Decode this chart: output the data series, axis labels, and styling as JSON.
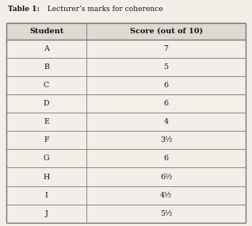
{
  "title_bold": "Table 1:",
  "title_normal": "  Lecturer’s marks for coherence",
  "col_headers": [
    "Student",
    "Score (out of 10)"
  ],
  "rows": [
    [
      "A",
      "7"
    ],
    [
      "B",
      "5"
    ],
    [
      "C",
      "6"
    ],
    [
      "D",
      "6"
    ],
    [
      "E",
      "4"
    ],
    [
      "F",
      "3½"
    ],
    [
      "G",
      "6"
    ],
    [
      "H",
      "6½"
    ],
    [
      "I",
      "4½"
    ],
    [
      "J",
      "5½"
    ]
  ],
  "bg_color": "#f2efe9",
  "header_bg": "#dedad2",
  "line_color": "#777777",
  "text_color": "#111111",
  "col_split": 0.335,
  "title_fontsize": 6.5,
  "header_fontsize": 7.0,
  "cell_fontsize": 6.8
}
